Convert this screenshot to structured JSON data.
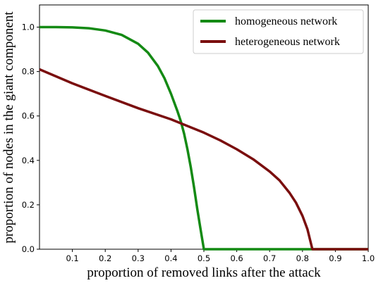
{
  "chart_data": {
    "type": "line",
    "xlabel": "proportion of removed links after the attack",
    "ylabel": "proportion of nodes in the giant component",
    "xlim": [
      0.0,
      1.0
    ],
    "ylim": [
      0.0,
      1.1
    ],
    "xticks": [
      0.1,
      0.2,
      0.3,
      0.4,
      0.5,
      0.6,
      0.7,
      0.8,
      0.9,
      1.0
    ],
    "xtick_labels": [
      "0.1",
      "0.2",
      "0.3",
      "0.4",
      "0.5",
      "0.6",
      "0.7",
      "0.8",
      "0.9",
      "1.0"
    ],
    "yticks": [
      0.0,
      0.2,
      0.4,
      0.6,
      0.8,
      1.0
    ],
    "ytick_labels": [
      "0.0",
      "0.2",
      "0.4",
      "0.6",
      "0.8",
      "1.0"
    ],
    "grid": false,
    "legend_position": "top-right",
    "series": [
      {
        "name": "homogeneous network",
        "color": "#148a14",
        "points": [
          [
            0.0,
            1.0
          ],
          [
            0.05,
            1.0
          ],
          [
            0.1,
            0.999
          ],
          [
            0.15,
            0.995
          ],
          [
            0.2,
            0.985
          ],
          [
            0.25,
            0.965
          ],
          [
            0.3,
            0.925
          ],
          [
            0.33,
            0.885
          ],
          [
            0.36,
            0.825
          ],
          [
            0.38,
            0.77
          ],
          [
            0.4,
            0.7
          ],
          [
            0.42,
            0.62
          ],
          [
            0.43,
            0.575
          ],
          [
            0.44,
            0.52
          ],
          [
            0.45,
            0.45
          ],
          [
            0.46,
            0.37
          ],
          [
            0.47,
            0.28
          ],
          [
            0.48,
            0.18
          ],
          [
            0.49,
            0.09
          ],
          [
            0.5,
            0.0
          ],
          [
            0.6,
            0.0
          ],
          [
            0.7,
            0.0
          ],
          [
            0.8,
            0.0
          ],
          [
            0.9,
            0.0
          ],
          [
            1.0,
            0.0
          ]
        ]
      },
      {
        "name": "heterogeneous network",
        "color": "#7a0e0e",
        "points": [
          [
            0.0,
            0.81
          ],
          [
            0.1,
            0.747
          ],
          [
            0.2,
            0.69
          ],
          [
            0.3,
            0.635
          ],
          [
            0.4,
            0.585
          ],
          [
            0.5,
            0.525
          ],
          [
            0.55,
            0.49
          ],
          [
            0.6,
            0.45
          ],
          [
            0.65,
            0.405
          ],
          [
            0.7,
            0.35
          ],
          [
            0.73,
            0.31
          ],
          [
            0.76,
            0.255
          ],
          [
            0.78,
            0.21
          ],
          [
            0.8,
            0.15
          ],
          [
            0.815,
            0.09
          ],
          [
            0.83,
            0.0
          ],
          [
            0.9,
            0.0
          ],
          [
            1.0,
            0.0
          ]
        ]
      }
    ]
  }
}
